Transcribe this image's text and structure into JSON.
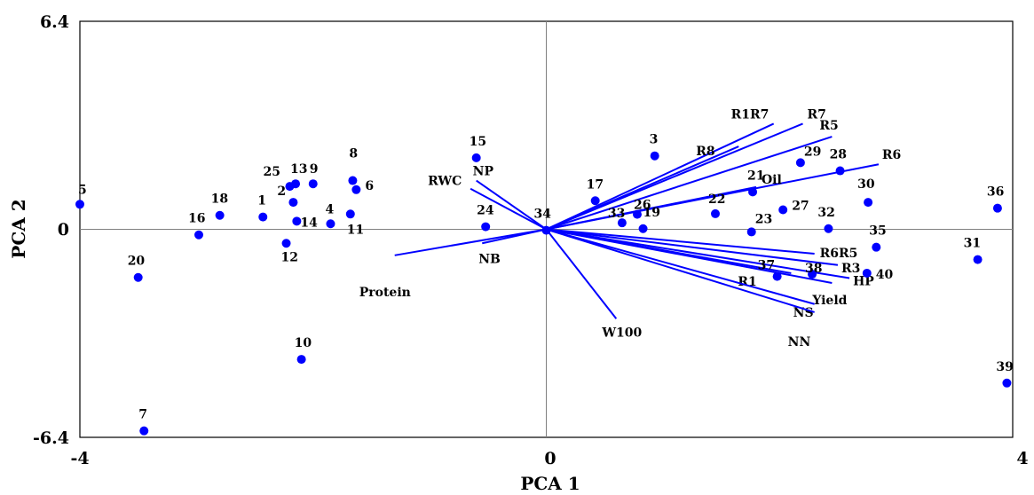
{
  "chart_data": {
    "type": "scatter",
    "xlabel": "PCA 1",
    "ylabel": "PCA 2",
    "xlim": [
      -4,
      4
    ],
    "ylim": [
      -6.4,
      6.4
    ],
    "x_ticks": [
      "-4",
      "0",
      "4"
    ],
    "y_ticks": [
      "6.4",
      "0",
      "-6.4"
    ],
    "grid": false,
    "reference_lines": "x=0 and y=0",
    "colors": {
      "points": "#0000ff",
      "vectors": "#0000ff",
      "frame": "#000000",
      "reference_lines": "#808080"
    },
    "points": [
      {
        "label": "1",
        "x": -2.43,
        "y": 0.38
      },
      {
        "label": "2",
        "x": -2.17,
        "y": 0.83
      },
      {
        "label": "3",
        "x": 0.93,
        "y": 2.26
      },
      {
        "label": "4",
        "x": -1.85,
        "y": 0.17
      },
      {
        "label": "5",
        "x": -4.0,
        "y": 0.77
      },
      {
        "label": "6",
        "x": -1.63,
        "y": 1.22
      },
      {
        "label": "7",
        "x": -3.45,
        "y": -6.2
      },
      {
        "label": "8",
        "x": -1.66,
        "y": 1.5
      },
      {
        "label": "9",
        "x": -2.0,
        "y": 1.4
      },
      {
        "label": "10",
        "x": -2.1,
        "y": -4.0
      },
      {
        "label": "11",
        "x": -1.68,
        "y": 0.47
      },
      {
        "label": "12",
        "x": -2.23,
        "y": -0.43
      },
      {
        "label": "13",
        "x": -2.15,
        "y": 1.4
      },
      {
        "label": "14",
        "x": -2.14,
        "y": 0.25
      },
      {
        "label": "15",
        "x": -0.6,
        "y": 2.2
      },
      {
        "label": "16",
        "x": -2.98,
        "y": -0.17
      },
      {
        "label": "17",
        "x": 0.42,
        "y": 0.88
      },
      {
        "label": "18",
        "x": -2.8,
        "y": 0.43
      },
      {
        "label": "19",
        "x": 0.83,
        "y": 0.02
      },
      {
        "label": "20",
        "x": -3.5,
        "y": -1.48
      },
      {
        "label": "21",
        "x": 1.77,
        "y": 1.15
      },
      {
        "label": "22",
        "x": 1.45,
        "y": 0.48
      },
      {
        "label": "23",
        "x": 1.76,
        "y": -0.08
      },
      {
        "label": "24",
        "x": -0.52,
        "y": 0.08
      },
      {
        "label": "25",
        "x": -2.2,
        "y": 1.32
      },
      {
        "label": "26",
        "x": 0.78,
        "y": 0.46
      },
      {
        "label": "27",
        "x": 2.03,
        "y": 0.6
      },
      {
        "label": "28",
        "x": 2.52,
        "y": 1.8
      },
      {
        "label": "29",
        "x": 2.18,
        "y": 2.05
      },
      {
        "label": "30",
        "x": 2.76,
        "y": 0.83
      },
      {
        "label": "31",
        "x": 3.7,
        "y": -0.93
      },
      {
        "label": "32",
        "x": 2.42,
        "y": 0.02
      },
      {
        "label": "33",
        "x": 0.65,
        "y": 0.2
      },
      {
        "label": "34",
        "x": 0.0,
        "y": -0.03
      },
      {
        "label": "35",
        "x": 2.83,
        "y": -0.55
      },
      {
        "label": "36",
        "x": 3.87,
        "y": 0.65
      },
      {
        "label": "37",
        "x": 1.98,
        "y": -1.45
      },
      {
        "label": "38",
        "x": 2.28,
        "y": -1.38
      },
      {
        "label": "39",
        "x": 3.95,
        "y": -4.73
      },
      {
        "label": "40",
        "x": 2.75,
        "y": -1.35
      }
    ],
    "vectors": [
      {
        "label": "R1R7",
        "x": 1.95,
        "y": 3.25
      },
      {
        "label": "R7",
        "x": 2.2,
        "y": 3.25
      },
      {
        "label": "R8",
        "x": 1.65,
        "y": 2.55
      },
      {
        "label": "R5",
        "x": 2.45,
        "y": 2.85
      },
      {
        "label": "R6",
        "x": 2.85,
        "y": 2.0
      },
      {
        "label": "Oil",
        "x": 1.8,
        "y": 1.3
      },
      {
        "label": "RWC",
        "x": -0.65,
        "y": 1.25
      },
      {
        "label": "NP",
        "x": -0.6,
        "y": 1.5
      },
      {
        "label": "Protein",
        "x": -1.3,
        "y": -0.8
      },
      {
        "label": "NB",
        "x": -0.55,
        "y": -0.43
      },
      {
        "label": "W100",
        "x": 0.6,
        "y": -2.75
      },
      {
        "label": "R6R5",
        "x": 2.3,
        "y": -0.75
      },
      {
        "label": "R3",
        "x": 2.5,
        "y": -1.1
      },
      {
        "label": "R1",
        "x": 2.1,
        "y": -1.35
      },
      {
        "label": "HP",
        "x": 2.6,
        "y": -1.5
      },
      {
        "label": "Yield",
        "x": 2.45,
        "y": -1.65
      },
      {
        "label": "NS",
        "x": 2.3,
        "y": -2.3
      },
      {
        "label": "NN",
        "x": 2.3,
        "y": -2.55
      }
    ]
  }
}
